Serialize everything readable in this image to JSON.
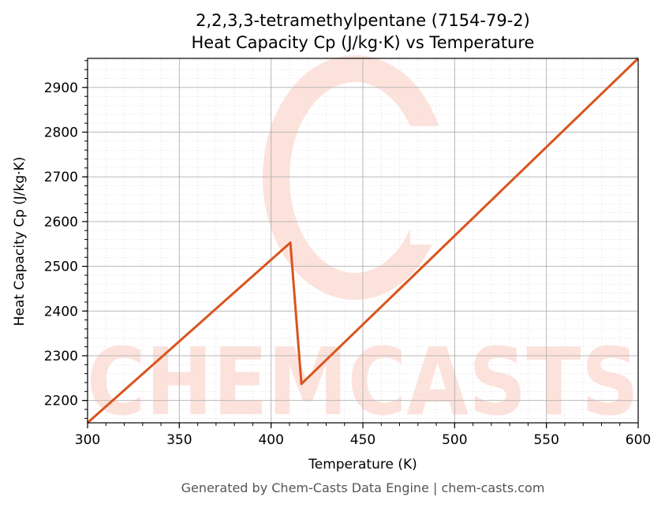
{
  "chart_data": {
    "type": "line",
    "title": "2,2,3,3-tetramethylpentane (7154-79-2)",
    "subtitle": "Heat Capacity Cp (J/kg·K) vs Temperature",
    "xlabel": "Temperature (K)",
    "ylabel": "Heat Capacity Cp (J/kg·K)",
    "xlim": [
      300,
      600
    ],
    "ylim": [
      2150,
      2965
    ],
    "x_ticks": [
      300,
      350,
      400,
      450,
      500,
      550,
      600
    ],
    "y_ticks": [
      2200,
      2300,
      2400,
      2500,
      2600,
      2700,
      2800,
      2900
    ],
    "grid": true,
    "line_color": "#d9541e",
    "series": [
      {
        "x": [
          300,
          410.5,
          416.5,
          600
        ],
        "y": [
          2150,
          2553,
          2237,
          2965
        ]
      }
    ]
  },
  "watermark": {
    "text": "CHEMCASTS",
    "color": "#fde2dc"
  },
  "footer": "Generated by Chem-Casts Data Engine | chem-casts.com"
}
